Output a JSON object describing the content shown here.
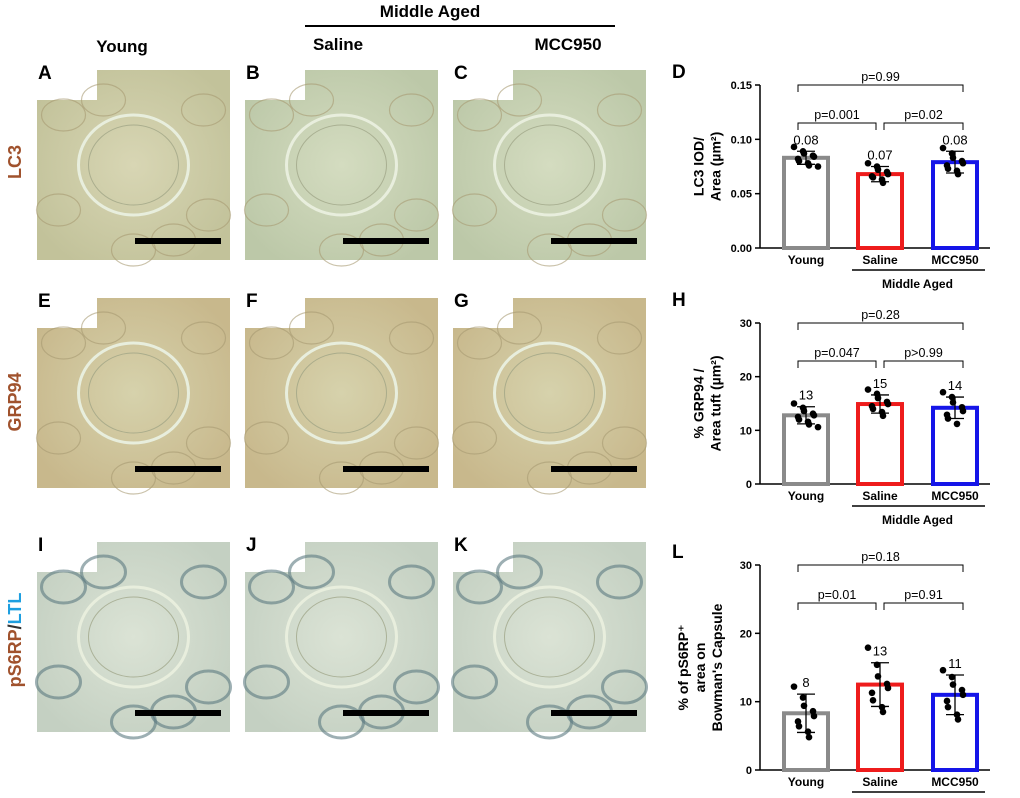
{
  "header": {
    "middle_aged": "Middle Aged",
    "young": "Young",
    "saline": "Saline",
    "mcc950": "MCC950"
  },
  "row_labels": {
    "lc3": "LC3",
    "grp94": "GRP94",
    "ps6rp": "pS6RP",
    "slash": "/",
    "ltl": "LTL"
  },
  "micrographs": [
    {
      "letter": "A",
      "stain": "LC3",
      "group": "Young"
    },
    {
      "letter": "B",
      "stain": "LC3",
      "group": "Saline"
    },
    {
      "letter": "C",
      "stain": "LC3",
      "group": "MCC950"
    },
    {
      "letter": "E",
      "stain": "GRP94",
      "group": "Young"
    },
    {
      "letter": "F",
      "stain": "GRP94",
      "group": "Saline"
    },
    {
      "letter": "G",
      "stain": "GRP94",
      "group": "MCC950"
    },
    {
      "letter": "I",
      "stain": "pS6RP/LTL",
      "group": "Young"
    },
    {
      "letter": "J",
      "stain": "pS6RP/LTL",
      "group": "Saline"
    },
    {
      "letter": "K",
      "stain": "pS6RP/LTL",
      "group": "MCC950"
    }
  ],
  "chart_data": [
    {
      "panel": "D",
      "type": "bar",
      "categories": [
        "Young",
        "Saline",
        "MCC950"
      ],
      "values": [
        0.083,
        0.068,
        0.079
      ],
      "errors": [
        0.006,
        0.007,
        0.01
      ],
      "bar_labels": [
        "0.08",
        "0.07",
        "0.08"
      ],
      "bar_colors": [
        "#8a8a8a",
        "#ee1c1c",
        "#1515e8"
      ],
      "points": [
        [
          0.093,
          0.089,
          0.087,
          0.085,
          0.084,
          0.082,
          0.08,
          0.078,
          0.076,
          0.075
        ],
        [
          0.078,
          0.075,
          0.072,
          0.07,
          0.068,
          0.066,
          0.065,
          0.063,
          0.06
        ],
        [
          0.092,
          0.087,
          0.083,
          0.08,
          0.078,
          0.076,
          0.073,
          0.071,
          0.068
        ]
      ],
      "ylabel_lines": [
        "LC3  IOD/",
        "Area (µm²)"
      ],
      "yticks": [
        "0.00",
        "0.05",
        "0.10",
        "0.15"
      ],
      "ylim": [
        0,
        0.15
      ],
      "group_label": "Middle Aged",
      "comparisons": [
        {
          "from": 0,
          "to": 2,
          "label": "p=0.99",
          "level": 2
        },
        {
          "from": 0,
          "to": 1,
          "label": "p=0.001",
          "level": 1
        },
        {
          "from": 1,
          "to": 2,
          "label": "p=0.02",
          "level": 1
        }
      ]
    },
    {
      "panel": "H",
      "type": "bar",
      "categories": [
        "Young",
        "Saline",
        "MCC950"
      ],
      "values": [
        12.8,
        14.9,
        14.2
      ],
      "errors": [
        1.6,
        1.7,
        2.0
      ],
      "bar_labels": [
        "13",
        "15",
        "14"
      ],
      "bar_colors": [
        "#8a8a8a",
        "#ee1c1c",
        "#1515e8"
      ],
      "points": [
        [
          15.0,
          14.2,
          13.6,
          13.1,
          12.8,
          12.5,
          12.0,
          11.6,
          11.1,
          10.6
        ],
        [
          17.6,
          16.8,
          16.0,
          15.3,
          14.9,
          14.5,
          14.0,
          13.4,
          12.7
        ],
        [
          17.1,
          16.2,
          15.2,
          14.3,
          13.6,
          12.9,
          12.2,
          11.2
        ]
      ],
      "ylabel_lines": [
        "% GRP94 /",
        "Area tuft (µm²)"
      ],
      "yticks": [
        "0",
        "10",
        "20",
        "30"
      ],
      "ylim": [
        0,
        30
      ],
      "group_label": "Middle Aged",
      "comparisons": [
        {
          "from": 0,
          "to": 2,
          "label": "p=0.28",
          "level": 2
        },
        {
          "from": 0,
          "to": 1,
          "label": "p=0.047",
          "level": 1
        },
        {
          "from": 1,
          "to": 2,
          "label": "p>0.99",
          "level": 1
        }
      ]
    },
    {
      "panel": "L",
      "type": "bar",
      "categories": [
        "Young",
        "Saline",
        "MCC950"
      ],
      "values": [
        8.3,
        12.5,
        11.0
      ],
      "errors": [
        2.8,
        3.2,
        2.9
      ],
      "bar_labels": [
        "8",
        "13",
        "11"
      ],
      "bar_colors": [
        "#8a8a8a",
        "#ee1c1c",
        "#1515e8"
      ],
      "points": [
        [
          12.2,
          10.6,
          9.4,
          8.6,
          7.9,
          7.1,
          6.4,
          5.6,
          4.8
        ],
        [
          17.9,
          15.4,
          13.7,
          12.6,
          12.0,
          11.3,
          10.2,
          9.2,
          8.5
        ],
        [
          14.6,
          13.6,
          12.5,
          11.7,
          11.0,
          10.1,
          9.2,
          8.1,
          7.4
        ]
      ],
      "ylabel_lines": [
        "% of pS6RP⁺",
        "area on",
        "Bowman's Capsule"
      ],
      "yticks": [
        "0",
        "10",
        "20",
        "30"
      ],
      "ylim": [
        0,
        30
      ],
      "group_label": "Middle Aged",
      "comparisons": [
        {
          "from": 0,
          "to": 2,
          "label": "p=0.18",
          "level": 2
        },
        {
          "from": 0,
          "to": 1,
          "label": "p=0.01",
          "level": 1
        },
        {
          "from": 1,
          "to": 2,
          "label": "p=0.91",
          "level": 1
        }
      ]
    }
  ]
}
